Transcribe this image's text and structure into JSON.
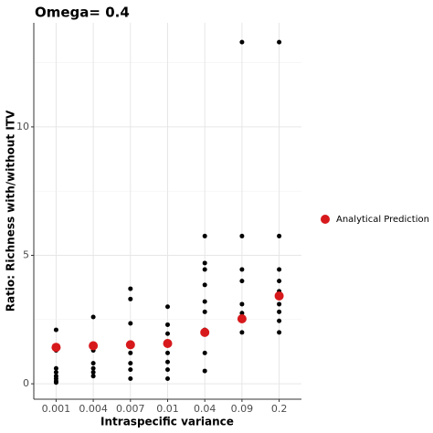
{
  "chart_data": {
    "type": "scatter",
    "title": "Omega= 0.4",
    "xlabel": "Intraspecific variance",
    "ylabel": "Ratio: Richness with/without ITV",
    "categories": [
      "0.001",
      "0.004",
      "0.007",
      "0.01",
      "0.04",
      "0.09",
      "0.2"
    ],
    "observed": {
      "color": "#000000",
      "values": [
        [
          2.1,
          1.3,
          0.6,
          0.45,
          0.3,
          0.2,
          0.1,
          0.05
        ],
        [
          2.6,
          1.5,
          1.3,
          0.8,
          0.6,
          0.45,
          0.3
        ],
        [
          3.7,
          3.3,
          2.35,
          1.45,
          1.2,
          0.8,
          0.55,
          0.2
        ],
        [
          3.0,
          2.3,
          1.95,
          1.55,
          1.2,
          0.85,
          0.55,
          0.2
        ],
        [
          5.75,
          4.7,
          4.45,
          3.85,
          3.2,
          2.8,
          2.1,
          1.2,
          0.5
        ],
        [
          13.3,
          5.75,
          4.45,
          4.0,
          3.1,
          2.75,
          2.0
        ],
        [
          13.3,
          5.75,
          4.45,
          4.0,
          3.6,
          3.1,
          2.8,
          2.45,
          2.0
        ]
      ]
    },
    "series": [
      {
        "name": "Analytical Prediction",
        "color": "#d7191c",
        "values": [
          1.42,
          1.48,
          1.52,
          1.57,
          2.0,
          2.53,
          3.42
        ]
      }
    ],
    "ylim": [
      -0.6,
      14.05
    ],
    "yticks": [
      0,
      5,
      10
    ],
    "y_minor_grid": [
      2.5,
      7.5,
      12.5
    ],
    "grid": true,
    "legend": "right"
  }
}
